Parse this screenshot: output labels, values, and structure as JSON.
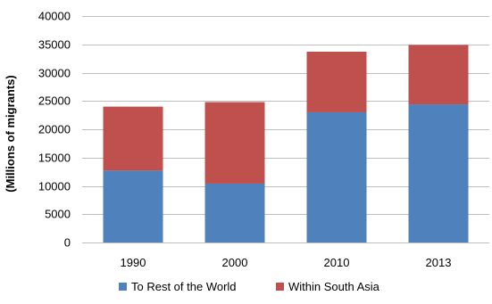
{
  "chart_data": {
    "type": "bar",
    "stacked": true,
    "categories": [
      "1990",
      "2000",
      "2010",
      "2013"
    ],
    "series": [
      {
        "name": "To Rest of the World",
        "values": [
          12700,
          10400,
          23000,
          24400
        ],
        "color": "#4f81bd"
      },
      {
        "name": "Within South Asia",
        "values": [
          11300,
          14400,
          10700,
          10500
        ],
        "color": "#c0504d"
      }
    ],
    "title": "",
    "xlabel": "",
    "ylabel": "(Millions of migrants)",
    "ylim": [
      0,
      40000
    ],
    "yticks": [
      0,
      5000,
      10000,
      15000,
      20000,
      25000,
      30000,
      35000,
      40000
    ],
    "grid": true,
    "legend_position": "bottom",
    "gridline_color": "#bfbfbf"
  }
}
